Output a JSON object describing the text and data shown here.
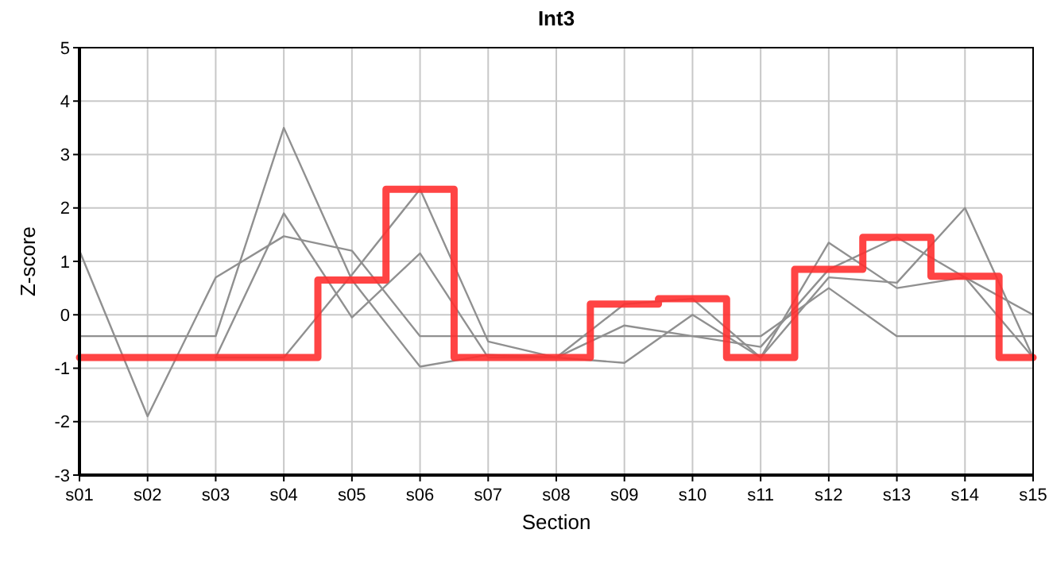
{
  "chart_data": {
    "type": "line",
    "title": "Int3",
    "xlabel": "Section",
    "ylabel": "Z-score",
    "categories": [
      "s01",
      "s02",
      "s03",
      "s04",
      "s05",
      "s06",
      "s07",
      "s08",
      "s09",
      "s10",
      "s11",
      "s12",
      "s13",
      "s14",
      "s15"
    ],
    "ylim": [
      -3,
      5
    ],
    "yticks": [
      -3,
      -2,
      -1,
      0,
      1,
      2,
      3,
      4,
      5
    ],
    "grid": true,
    "marker": "none",
    "series": [
      {
        "color": "#909090",
        "values": [
          1.2,
          -1.9,
          0.7,
          1.47,
          1.2,
          -0.4,
          -0.4,
          -0.4,
          -0.4,
          -0.4,
          -0.4,
          0.5,
          -0.4,
          -0.4,
          -0.4
        ]
      },
      {
        "color": "#909090",
        "values": [
          -0.4,
          -0.4,
          -0.4,
          3.5,
          0.65,
          -0.97,
          -0.75,
          -0.8,
          -0.9,
          0.0,
          -0.8,
          0.7,
          0.6,
          2.0,
          -0.8
        ]
      },
      {
        "color": "#909090",
        "values": [
          null,
          null,
          -0.8,
          1.9,
          -0.05,
          1.15,
          -0.8,
          -0.8,
          -0.2,
          -0.4,
          -0.6,
          0.85,
          1.45,
          0.7,
          0.0
        ]
      },
      {
        "color": "#909090",
        "values": [
          null,
          null,
          -0.8,
          -0.8,
          0.75,
          2.35,
          -0.5,
          -0.8,
          0.2,
          0.3,
          -0.8,
          1.35,
          0.5,
          0.7,
          -0.8
        ]
      },
      {
        "type": "step",
        "color": "#ff3030",
        "values": [
          -0.8,
          -0.8,
          -0.8,
          -0.8,
          0.65,
          2.35,
          -0.8,
          -0.8,
          0.2,
          0.3,
          -0.8,
          0.85,
          1.45,
          0.72,
          -0.8
        ]
      }
    ]
  }
}
